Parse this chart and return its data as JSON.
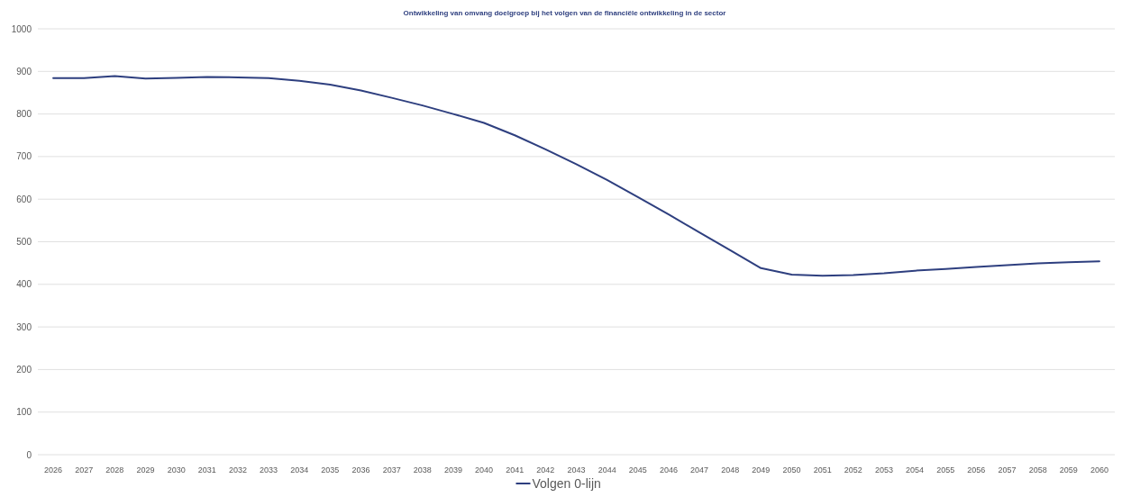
{
  "chart_data": {
    "type": "line",
    "title": "Ontwikkeling van omvang doelgroep bij het volgen van de financiële ontwikkeling in de sector",
    "categories": [
      "2026",
      "2027",
      "2028",
      "2029",
      "2030",
      "2031",
      "2032",
      "2033",
      "2034",
      "2035",
      "2036",
      "2037",
      "2038",
      "2039",
      "2040",
      "2041",
      "2042",
      "2043",
      "2044",
      "2045",
      "2046",
      "2047",
      "2048",
      "2049",
      "2050",
      "2051",
      "2052",
      "2053",
      "2054",
      "2055",
      "2056",
      "2057",
      "2058",
      "2059",
      "2060"
    ],
    "series": [
      {
        "name": "Volgen 0-lijn",
        "color": "#2e3f7f",
        "values": [
          884,
          884,
          889,
          883,
          885,
          887,
          886,
          884,
          878,
          869,
          855,
          838,
          820,
          800,
          779,
          750,
          717,
          682,
          645,
          605,
          564,
          522,
          480,
          438,
          423,
          420,
          422,
          426,
          432,
          436,
          441,
          445,
          449,
          452,
          454
        ]
      }
    ],
    "ylim": [
      0,
      1000
    ],
    "yticks": [
      0,
      100,
      200,
      300,
      400,
      500,
      600,
      700,
      800,
      900,
      1000
    ],
    "grid": "y",
    "legend": "bottom",
    "marker": "none",
    "line_style": "solid"
  }
}
